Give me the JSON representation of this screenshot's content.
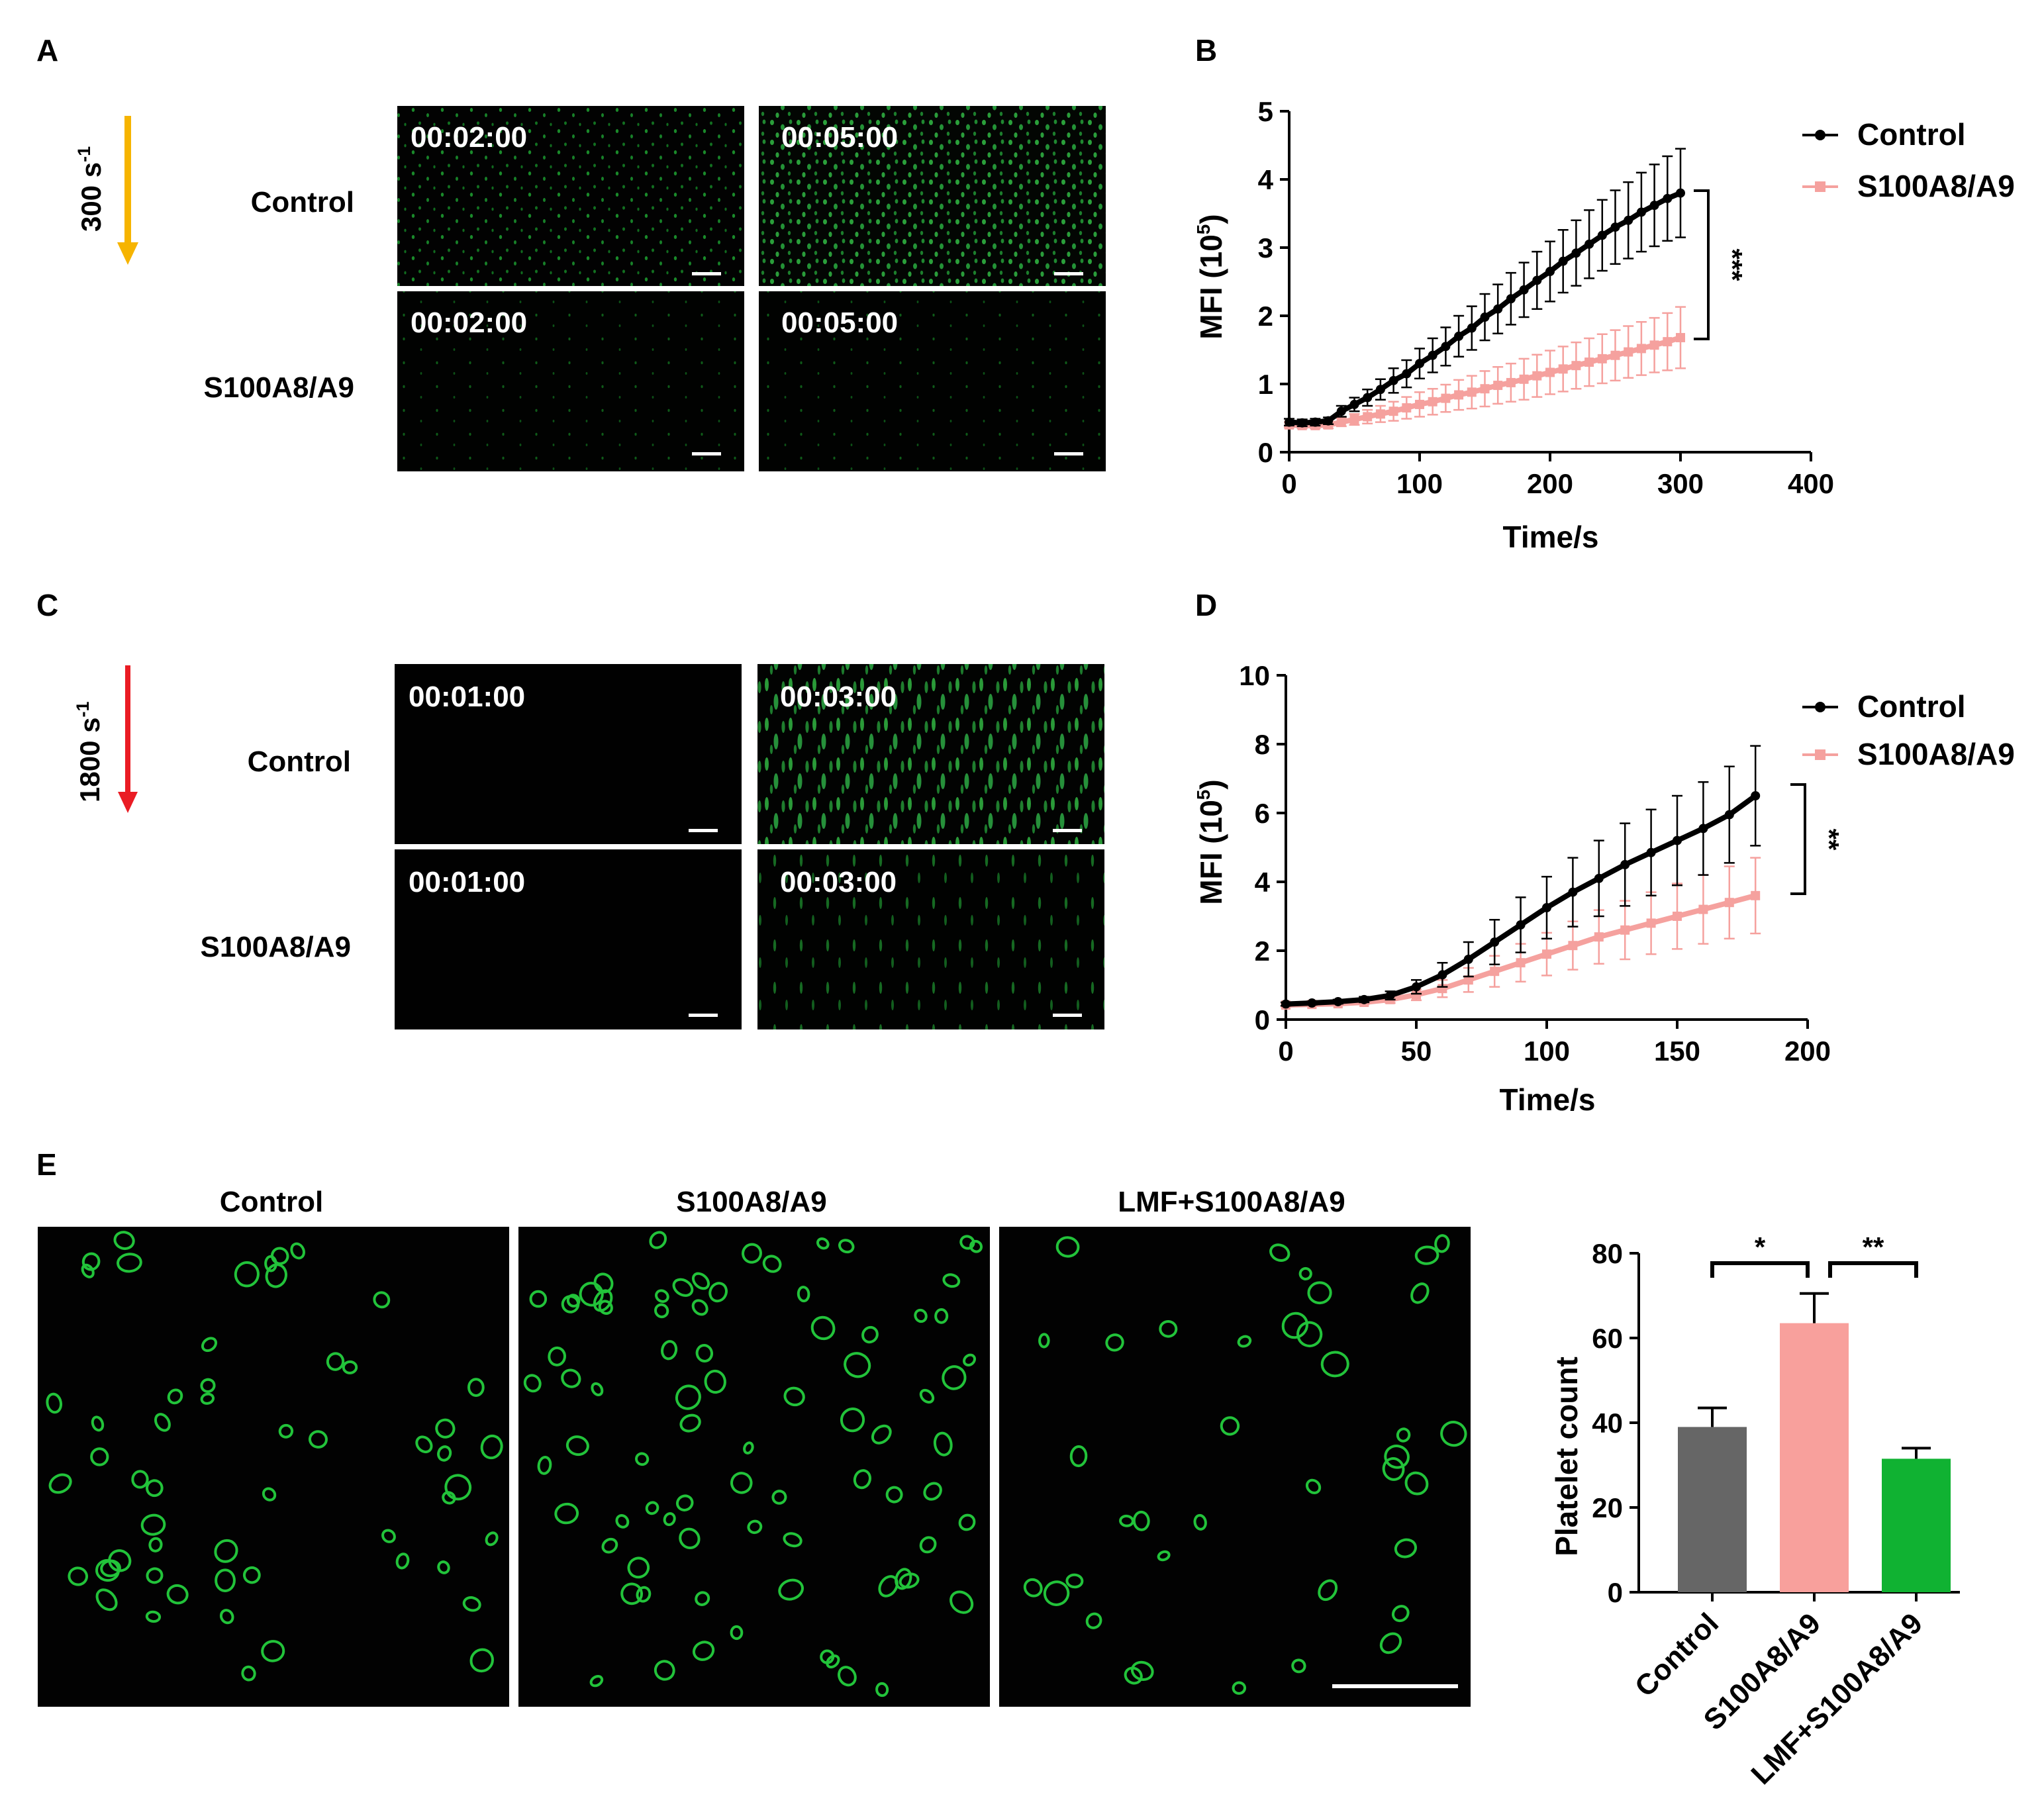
{
  "colors": {
    "control": "#000000",
    "s100": "#f5a19e",
    "bar_control": "#666666",
    "bar_s100": "#f8a09c",
    "bar_lmf": "#10b232",
    "fluor": "#22c33a",
    "arrow_300": "#f6b400",
    "arrow_1800": "#ea1c24",
    "image_bg": "#020202"
  },
  "panels": {
    "A": {
      "letter": "A",
      "shear": "300 s",
      "shear_sup": "-1",
      "rows": [
        "Control",
        "S100A8/A9"
      ],
      "times": [
        "00:02:00",
        "00:05:00"
      ]
    },
    "C": {
      "letter": "C",
      "shear": "1800 s",
      "shear_sup": "-1",
      "rows": [
        "Control",
        "S100A8/A9"
      ],
      "times": [
        "00:01:00",
        "00:03:00"
      ]
    },
    "E": {
      "letter": "E",
      "image_labels": [
        "Control",
        "S100A8/A9",
        "LMF+S100A8/A9"
      ]
    }
  },
  "chart_data": [
    {
      "id": "B",
      "letter": "B",
      "type": "line",
      "xlabel": "Time/s",
      "ylabel_main": "MFI (10",
      "ylabel_sup": "5",
      "ylabel_end": ")",
      "xlim": [
        0,
        400
      ],
      "ylim": [
        0,
        5
      ],
      "xticks": [
        0,
        100,
        200,
        300,
        400
      ],
      "yticks": [
        0,
        1,
        2,
        3,
        4,
        5
      ],
      "significance": "***",
      "legend": [
        "Control",
        "S100A8/A9"
      ],
      "series": [
        {
          "name": "Control",
          "x": [
            0,
            10,
            20,
            30,
            40,
            50,
            60,
            70,
            80,
            90,
            100,
            110,
            120,
            130,
            140,
            150,
            160,
            170,
            180,
            190,
            200,
            210,
            220,
            230,
            240,
            250,
            260,
            270,
            280,
            290,
            300
          ],
          "y": [
            0.44,
            0.43,
            0.44,
            0.46,
            0.6,
            0.7,
            0.8,
            0.92,
            1.05,
            1.15,
            1.3,
            1.42,
            1.55,
            1.7,
            1.82,
            1.98,
            2.1,
            2.25,
            2.38,
            2.52,
            2.65,
            2.8,
            2.92,
            3.05,
            3.18,
            3.3,
            3.4,
            3.52,
            3.62,
            3.72,
            3.8
          ],
          "err": [
            0.05,
            0.05,
            0.05,
            0.05,
            0.08,
            0.1,
            0.12,
            0.15,
            0.18,
            0.2,
            0.22,
            0.25,
            0.28,
            0.3,
            0.32,
            0.34,
            0.36,
            0.38,
            0.4,
            0.42,
            0.44,
            0.46,
            0.48,
            0.5,
            0.52,
            0.54,
            0.56,
            0.58,
            0.6,
            0.62,
            0.65
          ]
        },
        {
          "name": "S100A8/A9",
          "x": [
            0,
            10,
            20,
            30,
            40,
            50,
            60,
            70,
            80,
            90,
            100,
            110,
            120,
            130,
            140,
            150,
            160,
            170,
            180,
            190,
            200,
            210,
            220,
            230,
            240,
            250,
            260,
            270,
            280,
            290,
            300
          ],
          "y": [
            0.4,
            0.39,
            0.39,
            0.4,
            0.44,
            0.48,
            0.52,
            0.56,
            0.6,
            0.65,
            0.7,
            0.74,
            0.79,
            0.84,
            0.88,
            0.93,
            0.98,
            1.02,
            1.07,
            1.12,
            1.17,
            1.22,
            1.27,
            1.32,
            1.37,
            1.42,
            1.47,
            1.52,
            1.57,
            1.62,
            1.68
          ],
          "err": [
            0.04,
            0.04,
            0.04,
            0.05,
            0.06,
            0.08,
            0.1,
            0.12,
            0.14,
            0.16,
            0.18,
            0.19,
            0.2,
            0.22,
            0.24,
            0.26,
            0.27,
            0.28,
            0.3,
            0.31,
            0.32,
            0.33,
            0.34,
            0.35,
            0.36,
            0.37,
            0.38,
            0.39,
            0.4,
            0.42,
            0.45
          ]
        }
      ]
    },
    {
      "id": "D",
      "letter": "D",
      "type": "line",
      "xlabel": "Time/s",
      "ylabel_main": "MFI (10",
      "ylabel_sup": "5",
      "ylabel_end": ")",
      "xlim": [
        0,
        200
      ],
      "ylim": [
        0,
        10
      ],
      "xticks": [
        0,
        50,
        100,
        150,
        200
      ],
      "yticks": [
        0,
        2,
        4,
        6,
        8,
        10
      ],
      "significance": "**",
      "legend": [
        "Control",
        "S100A8/A9"
      ],
      "series": [
        {
          "name": "Control",
          "x": [
            0,
            10,
            20,
            30,
            40,
            50,
            60,
            70,
            80,
            90,
            100,
            110,
            120,
            130,
            140,
            150,
            160,
            170,
            180
          ],
          "y": [
            0.45,
            0.48,
            0.52,
            0.58,
            0.7,
            0.95,
            1.3,
            1.75,
            2.25,
            2.75,
            3.25,
            3.7,
            4.1,
            4.5,
            4.85,
            5.2,
            5.55,
            5.95,
            6.5
          ],
          "err": [
            0.05,
            0.05,
            0.06,
            0.08,
            0.12,
            0.2,
            0.35,
            0.5,
            0.65,
            0.8,
            0.9,
            1.0,
            1.1,
            1.2,
            1.25,
            1.3,
            1.35,
            1.4,
            1.45
          ]
        },
        {
          "name": "S100A8/A9",
          "x": [
            0,
            10,
            20,
            30,
            40,
            50,
            60,
            70,
            80,
            90,
            100,
            110,
            120,
            130,
            140,
            150,
            160,
            170,
            180
          ],
          "y": [
            0.42,
            0.44,
            0.46,
            0.5,
            0.58,
            0.72,
            0.9,
            1.15,
            1.4,
            1.65,
            1.9,
            2.15,
            2.4,
            2.6,
            2.8,
            3.0,
            3.2,
            3.4,
            3.6
          ],
          "err": [
            0.04,
            0.05,
            0.05,
            0.06,
            0.1,
            0.16,
            0.25,
            0.35,
            0.45,
            0.55,
            0.62,
            0.7,
            0.78,
            0.85,
            0.9,
            0.95,
            1.0,
            1.05,
            1.1
          ]
        }
      ]
    },
    {
      "id": "E",
      "type": "bar",
      "ylabel": "Platelet count",
      "ylim": [
        0,
        80
      ],
      "yticks": [
        0,
        20,
        40,
        60,
        80
      ],
      "categories": [
        "Control",
        "S100A8/A9",
        "LMF+S100A8/A9"
      ],
      "values": [
        39,
        63.5,
        31.5
      ],
      "errors": [
        4.5,
        7,
        2.5
      ],
      "significance": [
        {
          "from": 0,
          "to": 1,
          "label": "*"
        },
        {
          "from": 1,
          "to": 2,
          "label": "**"
        }
      ]
    }
  ]
}
